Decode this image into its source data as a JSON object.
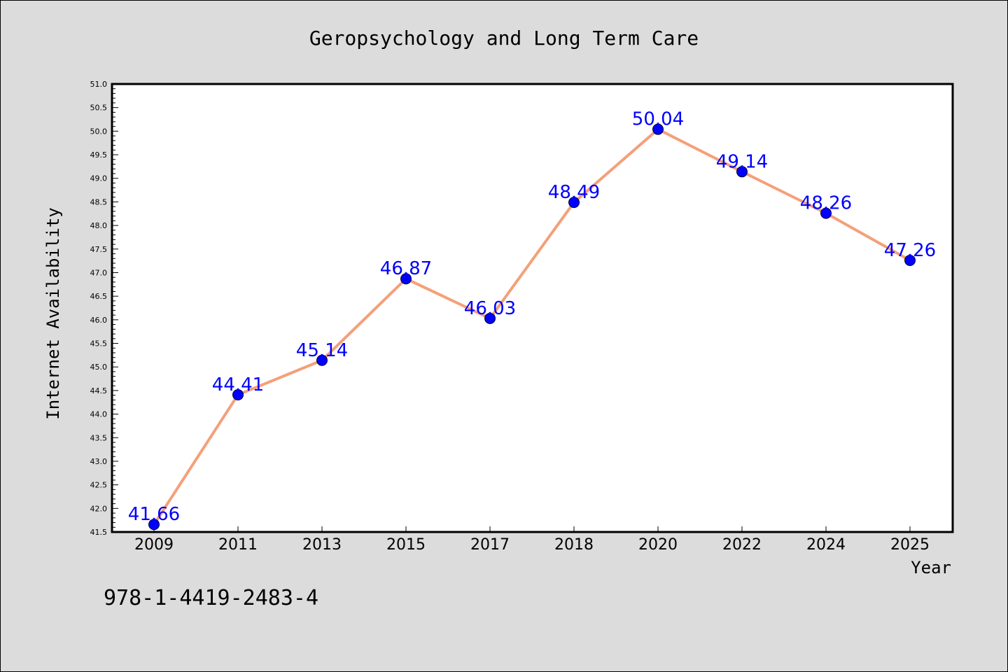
{
  "chart_data": {
    "type": "line",
    "title": "Geropsychology and Long Term Care",
    "xlabel": "Year",
    "ylabel": "Internet Availability",
    "categories": [
      "2009",
      "2011",
      "2013",
      "2015",
      "2017",
      "2018",
      "2020",
      "2022",
      "2024",
      "2025"
    ],
    "series": [
      {
        "values": [
          41.66,
          44.41,
          45.14,
          46.87,
          46.03,
          48.49,
          50.04,
          49.14,
          48.26,
          47.26
        ],
        "labels": [
          "41.66",
          "44.41",
          "45.14",
          "46.87",
          "46.03",
          "48.49",
          "50.04",
          "49.14",
          "48.26",
          "47.26"
        ]
      }
    ],
    "ylim": [
      41.5,
      51.0
    ],
    "yticks": [
      "41.5",
      "42.0",
      "42.5",
      "43.0",
      "43.5",
      "44.0",
      "44.5",
      "45.0",
      "45.5",
      "46.0",
      "46.5",
      "47.0",
      "47.5",
      "48.0",
      "48.5",
      "49.0",
      "49.5",
      "50.0",
      "50.5",
      "51.0"
    ],
    "grid": false,
    "legend": "none",
    "colors": {
      "background": "#dcdcdc",
      "plot_background": "#ffffff",
      "line": "#f4a07a",
      "marker": "#0000ff",
      "data_label": "#0000ff"
    }
  },
  "footer": {
    "isbn": "978-1-4419-2483-4"
  }
}
